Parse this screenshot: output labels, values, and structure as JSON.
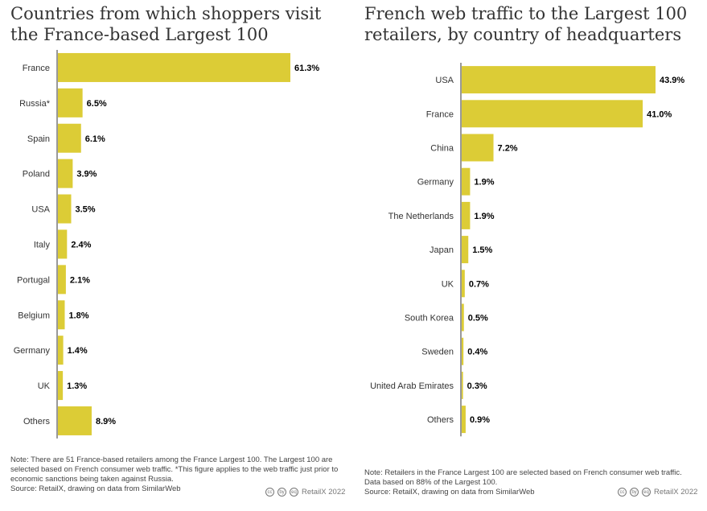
{
  "colors": {
    "bar": "#dccc36",
    "axis": "#333333"
  },
  "left": {
    "title": "Countries from which shoppers visit the France-based Largest 100",
    "note": "Note: There are 51 France-based retailers among the France Largest 100. The Largest 100 are selected based on French consumer web traffic. *This figure applies to the web traffic just prior to economic sanctions being taken against Russia.",
    "source": "Source: RetailX, drawing on data from SimilarWeb",
    "credit": "RetailX 2022",
    "cc_icons": [
      "cc",
      "by",
      "eq"
    ]
  },
  "right": {
    "title": "French web traffic to the Largest 100 retailers, by country of headquarters",
    "note": "Note: Retailers in the France Largest 100 are selected based on French consumer web traffic. Data based on 88% of the Largest 100.",
    "source": "Source: RetailX, drawing on data from SimilarWeb",
    "credit": "RetailX 2022",
    "cc_icons": [
      "cc",
      "by",
      "eq"
    ]
  },
  "chart_data": [
    {
      "type": "bar",
      "orientation": "horizontal",
      "title": "Countries from which shoppers visit the France-based Largest 100",
      "categories": [
        "France",
        "Russia*",
        "Spain",
        "Poland",
        "USA",
        "Italy",
        "Portugal",
        "Belgium",
        "Germany",
        "UK",
        "Others"
      ],
      "values": [
        61.3,
        6.5,
        6.1,
        3.9,
        3.5,
        2.4,
        2.1,
        1.8,
        1.4,
        1.3,
        8.9
      ],
      "value_labels": [
        "61.3%",
        "6.5%",
        "6.1%",
        "3.9%",
        "3.5%",
        "2.4%",
        "2.1%",
        "1.8%",
        "1.4%",
        "1.3%",
        "8.9%"
      ],
      "unit": "%",
      "xlim": [
        0,
        61.3
      ],
      "grid": false
    },
    {
      "type": "bar",
      "orientation": "horizontal",
      "title": "French web traffic to the Largest 100 retailers, by country of headquarters",
      "categories": [
        "USA",
        "France",
        "China",
        "Germany",
        "The Netherlands",
        "Japan",
        "UK",
        "South Korea",
        "Sweden",
        "United Arab Emirates",
        "Others"
      ],
      "values": [
        43.9,
        41.0,
        7.2,
        1.9,
        1.9,
        1.5,
        0.7,
        0.5,
        0.4,
        0.3,
        0.9
      ],
      "value_labels": [
        "43.9%",
        "41.0%",
        "7.2%",
        "1.9%",
        "1.9%",
        "1.5%",
        "0.7%",
        "0.5%",
        "0.4%",
        "0.3%",
        "0.9%"
      ],
      "unit": "%",
      "xlim": [
        0,
        43.9
      ],
      "grid": false
    }
  ]
}
